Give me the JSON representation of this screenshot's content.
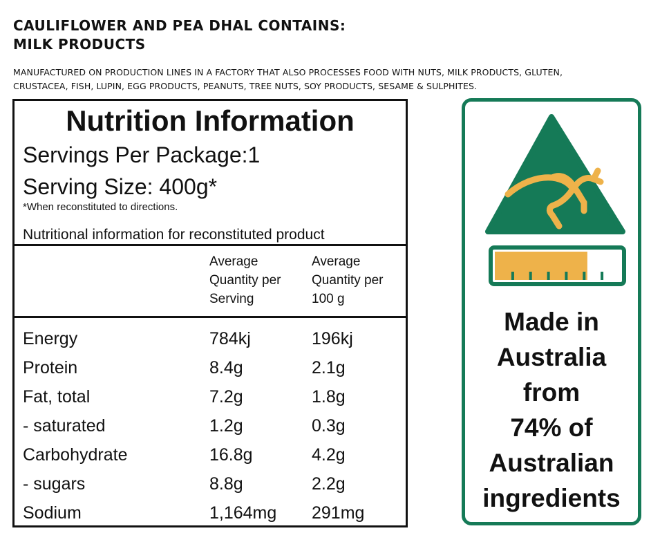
{
  "allergen": {
    "title_line1": "CAULIFLOWER AND PEA DHAL CONTAINS:",
    "title_line2": "MILK PRODUCTS",
    "note_line1": "MANUFACTURED ON PRODUCTION LINES IN A FACTORY THAT ALSO PROCESSES FOOD WITH NUTS, MILK PRODUCTS, GLUTEN,",
    "note_line2": "CRUSTACEA, FISH, LUPIN, EGG PRODUCTS, PEANUTS, TREE NUTS, SOY PRODUCTS, SESAME & SULPHITES."
  },
  "nutrition": {
    "title": "Nutrition Information",
    "servings_per_package": "Servings Per Package:1",
    "serving_size": "Serving Size: 400g*",
    "reconstituted_note": "*When reconstituted to directions.",
    "reconstituted_info": "Nutritional information for reconstituted product",
    "col_per_serving": [
      "Average",
      "Quantity per",
      "Serving"
    ],
    "col_per_100g": [
      "Average",
      "Quantity per",
      "100 g"
    ],
    "rows": [
      {
        "name": "Energy",
        "per_serving": "784kj",
        "per_100g": "196kj"
      },
      {
        "name": "Protein",
        "per_serving": "8.4g",
        "per_100g": "2.1g"
      },
      {
        "name": "Fat, total",
        "per_serving": "7.2g",
        "per_100g": "1.8g"
      },
      {
        "name": "- saturated",
        "per_serving": "1.2g",
        "per_100g": "0.3g"
      },
      {
        "name": "Carbohydrate",
        "per_serving": "16.8g",
        "per_100g": "4.2g"
      },
      {
        "name": "- sugars",
        "per_serving": "8.8g",
        "per_100g": "2.2g"
      },
      {
        "name": "Sodium",
        "per_serving": "1,164mg",
        "per_100g": "291mg"
      }
    ]
  },
  "badge": {
    "lines": [
      "Made in",
      "Australia",
      "from",
      "74% of",
      "Australian",
      "ingredients"
    ],
    "australian_ingredient_fraction": 0.74,
    "logo_icon": "kangaroo-triangle-icon",
    "colors": {
      "green": "#157a57",
      "gold": "#eeb24a",
      "text": "#111111"
    }
  }
}
